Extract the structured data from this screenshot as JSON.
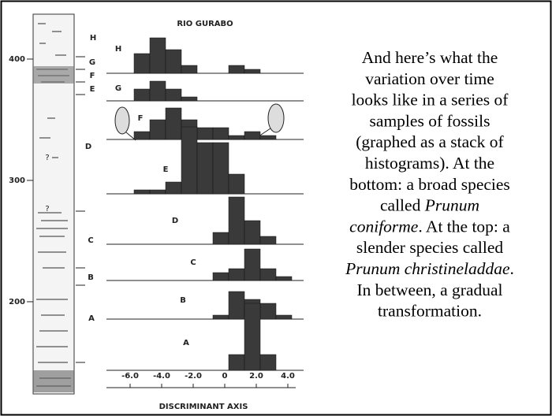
{
  "chart_data": {
    "type": "histogram",
    "title": "RIO GURABO",
    "xlabel": "DISCRIMINANT AXIS",
    "xlim": [
      -7.5,
      4.5
    ],
    "xticks": [
      {
        "value": -6,
        "label": "-6.0"
      },
      {
        "value": -4,
        "label": "-4.0"
      },
      {
        "value": -2,
        "label": "-2.0"
      },
      0,
      {
        "value": 2,
        "label": "2.0"
      },
      {
        "value": 4,
        "label": "4.0"
      }
    ],
    "bins": [
      -5.75,
      -4.75,
      -3.75,
      -2.75,
      -1.75,
      -0.75,
      0.25,
      1.25,
      2.25,
      3.25,
      4.25
    ],
    "color": "#3a3a3a",
    "series": [
      {
        "name": "H",
        "values": [
          5,
          9,
          6,
          2,
          0,
          0,
          2,
          1,
          0,
          0
        ]
      },
      {
        "name": "G",
        "values": [
          3,
          5,
          3,
          1,
          0,
          0,
          0,
          0,
          0,
          0
        ]
      },
      {
        "name": "F",
        "values": [
          2,
          5,
          8,
          5,
          3,
          3,
          1,
          2,
          1,
          0
        ]
      },
      {
        "name": "E",
        "values": [
          1,
          1,
          3,
          17,
          13,
          13,
          5,
          0,
          0,
          0
        ]
      },
      {
        "name": "D",
        "values": [
          0,
          0,
          0,
          0,
          0,
          3,
          12,
          6,
          2,
          0
        ]
      },
      {
        "name": "C",
        "values": [
          0,
          0,
          0,
          0,
          0,
          2,
          3,
          8,
          3,
          1
        ]
      },
      {
        "name": "B",
        "values": [
          0,
          0,
          0,
          0,
          0,
          1,
          7,
          5,
          4,
          1
        ]
      },
      {
        "name": "A",
        "values": [
          0,
          0,
          0,
          0,
          0,
          0,
          4,
          17,
          4,
          0
        ]
      }
    ]
  },
  "column": {
    "ylim": [
      124,
      437
    ],
    "ticks": [
      400,
      300,
      200
    ],
    "zones": [
      "H",
      "G",
      "F",
      "E",
      "D",
      "C",
      "B",
      "A"
    ],
    "uncertain": [
      "?",
      "?"
    ]
  },
  "caption": [
    [
      {
        "text": "And here’s what the",
        "italic": false
      }
    ],
    [
      {
        "text": "variation over time",
        "italic": false
      }
    ],
    [
      {
        "text": "looks like in a series of",
        "italic": false
      }
    ],
    [
      {
        "text": "samples of fossils",
        "italic": false
      }
    ],
    [
      {
        "text": "(graphed as a stack of",
        "italic": false
      }
    ],
    [
      {
        "text": "histograms). At the",
        "italic": false
      }
    ],
    [
      {
        "text": "bottom: a broad species",
        "italic": false
      }
    ],
    [
      {
        "text": "called ",
        "italic": false
      },
      {
        "text": "Prunum",
        "italic": true
      }
    ],
    [
      {
        "text": "coniforme",
        "italic": true
      },
      {
        "text": ". At the top: a",
        "italic": false
      }
    ],
    [
      {
        "text": "slender species called",
        "italic": false
      }
    ],
    [
      {
        "text": "Prunum christineladdae",
        "italic": true
      },
      {
        "text": ".",
        "italic": false
      }
    ],
    [
      {
        "text": "In between, a gradual",
        "italic": false
      }
    ],
    [
      {
        "text": "transformation.",
        "italic": false
      }
    ]
  ]
}
